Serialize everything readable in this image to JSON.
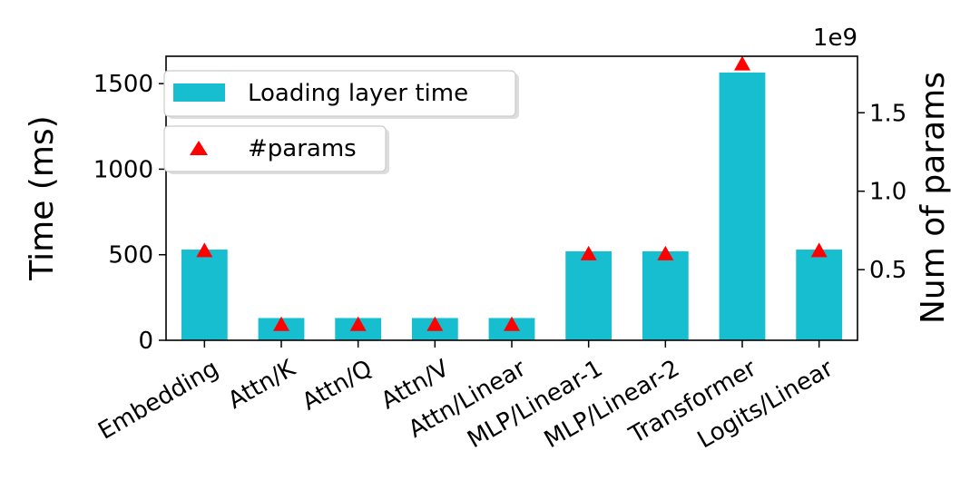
{
  "chart_data": {
    "type": "bar",
    "categories": [
      "Embedding",
      "Attn/K",
      "Attn/Q",
      "Attn/V",
      "Attn/Linear",
      "MLP/Linear-1",
      "MLP/Linear-2",
      "Transformer",
      "Logits/Linear"
    ],
    "series": [
      {
        "name": "Loading layer time",
        "type": "bar",
        "axis": "left",
        "color": "#17becf",
        "values": [
          530,
          130,
          130,
          130,
          130,
          520,
          520,
          1565,
          530
        ]
      },
      {
        "name": "#params",
        "type": "scatter",
        "marker": "triangle",
        "axis": "right",
        "color": "#ff0000",
        "values": [
          620000000,
          150000000,
          150000000,
          150000000,
          150000000,
          600000000,
          600000000,
          1810000000,
          620000000
        ]
      }
    ],
    "ylabel": "Time (ms)",
    "ylim": [
      0,
      1660
    ],
    "yticks": [
      0,
      500,
      1000,
      1500
    ],
    "ylabel_right": "Num of params",
    "ylim_right": [
      50000000,
      1860000000
    ],
    "yticks_right": [
      500000000,
      1000000000,
      1500000000
    ],
    "ytick_labels_right": [
      "0.5",
      "1.0",
      "1.5"
    ],
    "right_offset_text": "1e9",
    "grid": false,
    "legend": {
      "placement": "top-left",
      "entries": [
        "Loading layer time",
        "#params"
      ]
    }
  }
}
